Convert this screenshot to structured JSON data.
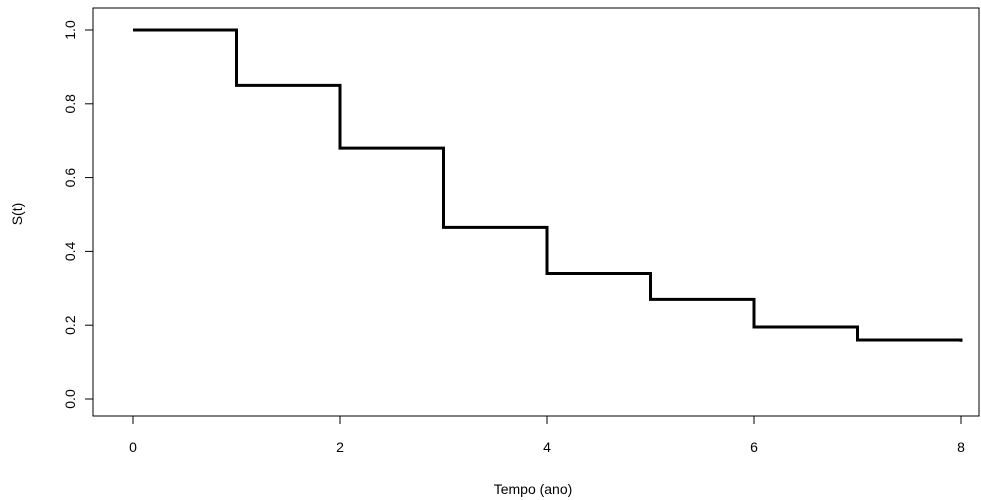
{
  "chart_data": {
    "type": "line",
    "step": true,
    "title": "",
    "xlabel": "Tempo (ano)",
    "ylabel": "S(t)",
    "xlim": [
      0,
      8
    ],
    "ylim": [
      0,
      1
    ],
    "x_ticks": [
      0,
      2,
      4,
      6,
      8
    ],
    "x_tick_labels": [
      "0",
      "2",
      "4",
      "6",
      "8"
    ],
    "y_ticks": [
      0.0,
      0.2,
      0.4,
      0.6,
      0.8,
      1.0
    ],
    "y_tick_labels": [
      "0.0",
      "0.2",
      "0.4",
      "0.6",
      "0.8",
      "1.0"
    ],
    "grid": false,
    "legend": "none",
    "line_color": "#000000",
    "series": [
      {
        "x": [
          0,
          1,
          2,
          3,
          4,
          5,
          6,
          7,
          8
        ],
        "values": [
          1.0,
          0.85,
          0.68,
          0.465,
          0.34,
          0.27,
          0.195,
          0.16,
          0.155
        ]
      }
    ]
  }
}
